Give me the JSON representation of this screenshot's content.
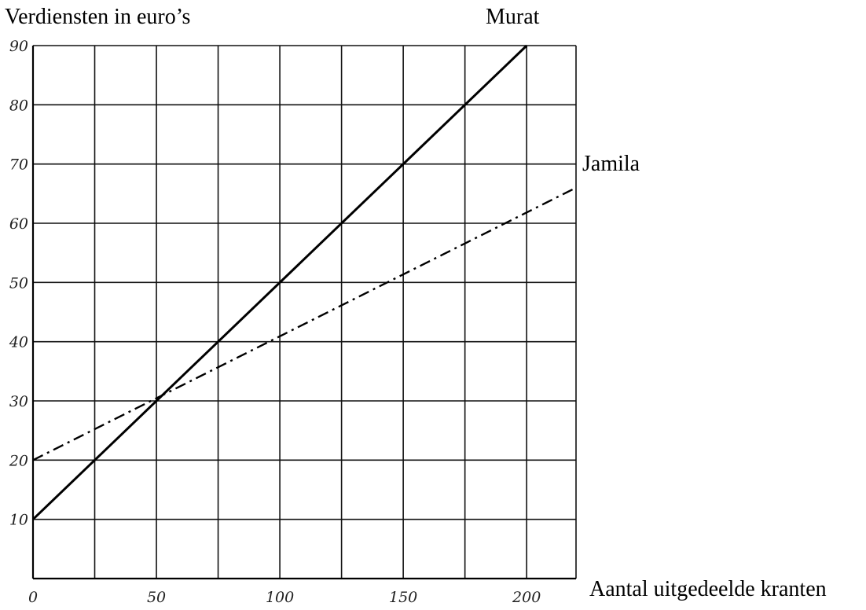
{
  "chart_data": {
    "type": "line",
    "ylabel": "Verdiensten in euro’s",
    "xlabel": "Aantal uitgedeelde kranten",
    "xlim": [
      0,
      220
    ],
    "ylim": [
      0,
      90
    ],
    "x_grid_step": 25,
    "y_grid_step": 10,
    "grid": true,
    "x_ticks": [
      {
        "value": 0,
        "label": "0"
      },
      {
        "value": 50,
        "label": "50"
      },
      {
        "value": 100,
        "label": "100"
      },
      {
        "value": 150,
        "label": "150"
      },
      {
        "value": 200,
        "label": "200"
      }
    ],
    "y_ticks": [
      {
        "value": 10,
        "label": "10"
      },
      {
        "value": 20,
        "label": "20"
      },
      {
        "value": 30,
        "label": "30"
      },
      {
        "value": 40,
        "label": "40"
      },
      {
        "value": 50,
        "label": "50"
      },
      {
        "value": 60,
        "label": "60"
      },
      {
        "value": 70,
        "label": "70"
      },
      {
        "value": 80,
        "label": "80"
      },
      {
        "value": 90,
        "label": "90"
      }
    ],
    "series": [
      {
        "name": "Murat",
        "style": "solid",
        "x": [
          0,
          200
        ],
        "y": [
          10,
          90
        ]
      },
      {
        "name": "Jamila",
        "style": "dashdot",
        "x": [
          0,
          220
        ],
        "y": [
          20,
          66
        ]
      }
    ]
  }
}
